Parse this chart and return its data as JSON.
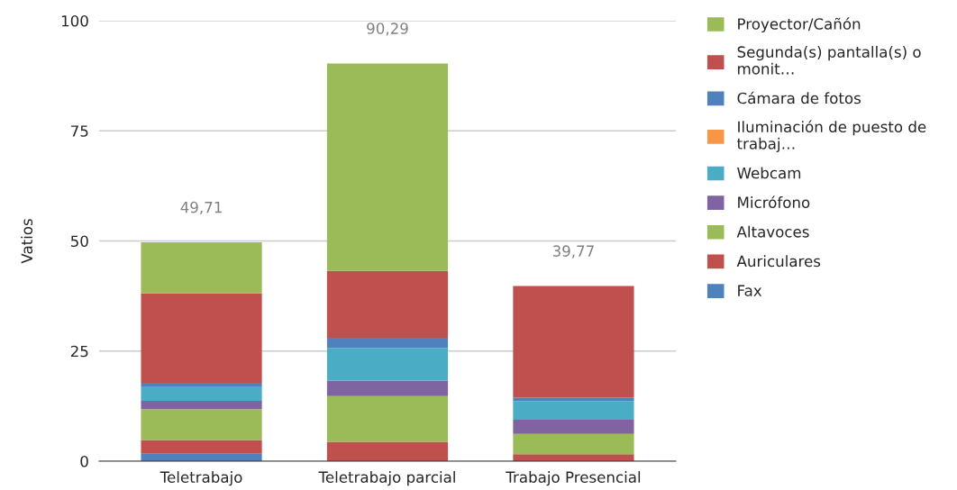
{
  "chart_data": {
    "type": "bar",
    "stacked": true,
    "ylabel": "Vatios",
    "categories": [
      "Teletrabajo",
      "Teletrabajo parcial",
      "Trabajo Presencial"
    ],
    "series": [
      {
        "name": "Fax",
        "color": "#4f81bd",
        "values": [
          1.7,
          0,
          0
        ]
      },
      {
        "name": "Auriculares",
        "color": "#c0504d",
        "values": [
          3.1,
          4.4,
          1.6
        ]
      },
      {
        "name": "Altavoces",
        "color": "#9bbb59",
        "values": [
          7.0,
          10.4,
          4.6
        ]
      },
      {
        "name": "Micrófono",
        "color": "#8064a2",
        "values": [
          1.9,
          3.5,
          3.2
        ]
      },
      {
        "name": "Webcam",
        "color": "#4bacc6",
        "values": [
          3.1,
          7.4,
          4.2
        ]
      },
      {
        "name": "Iluminación de puesto de trabaj…",
        "color": "#f79646",
        "values": [
          null,
          null,
          null
        ]
      },
      {
        "name": "Cámara de fotos",
        "color": "#4f81bd",
        "values": [
          1.0,
          2.3,
          0.8
        ]
      },
      {
        "name": "Segunda(s) pantalla(s) o monit…",
        "color": "#c0504d",
        "values": [
          20.3,
          15.2,
          25.37
        ]
      },
      {
        "name": "Proyector/Cañón",
        "color": "#9bbb59",
        "values": [
          11.6,
          47.1,
          0
        ]
      }
    ],
    "totals": [
      "49,71",
      "90,29",
      "39,77"
    ],
    "ylim": [
      0,
      100
    ],
    "yticks": [
      0,
      25,
      50,
      75,
      100
    ],
    "grid": "y",
    "legend": "right"
  }
}
